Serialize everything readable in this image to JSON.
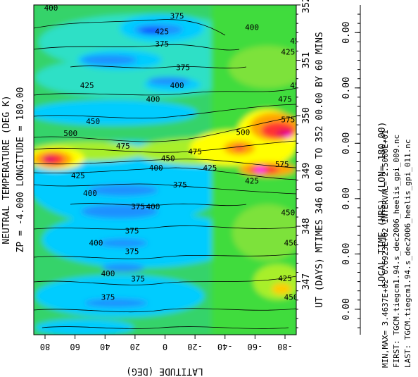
{
  "chart_data": {
    "type": "heatmap",
    "title": "NEUTRAL TEMPERATURE (DEG K)",
    "subtitle": "ZP =   -4.000 LONGITUDE =   180.00",
    "xlabel": "LATITUDE (DEG)",
    "x_ticks": [
      "80",
      "60",
      "40",
      "20",
      "0",
      "-20",
      "-40",
      "-60",
      "-80"
    ],
    "xlim": [
      87.5,
      -87.5
    ],
    "ylabel_days": "UT (DAYS) MTIMES 346 01.00 TO 352 00.00 BY   60 MINS",
    "y_ticks_days": [
      "347",
      "348",
      "349",
      "350",
      "351",
      "352"
    ],
    "ylabel_local_time": "LOCAL TIME (HRS) (LON= 180.00)",
    "y_ticks_local_time": [
      "0.00",
      "0.00",
      "0.00",
      "0.00",
      "0.00",
      "0.00"
    ],
    "ylim_days": [
      346.04,
      352.0
    ],
    "min_max_line": "MIN,MAX=  3.4637E+02  6.6923E+02 INTERVAL=  2.5000E+01",
    "first_line": "FIRST: TGCM.tiegcm1.94.s_dec2006_heelis_gpi_009.nc",
    "last_line": "LAST:  TGCM.tiegcm1.94.s_dec2006_heelis_gpi_011.nc",
    "colors": [
      "#0000ff",
      "#1e90ff",
      "#00d0ff",
      "#40e0c0",
      "#00c060",
      "#40ff40",
      "#c8ff00",
      "#ffff00",
      "#ffa500",
      "#ff3030",
      "#e0006a",
      "#ff00ff"
    ],
    "contour_labels": [
      {
        "text": "400",
        "lat": 76,
        "day": 351.95
      },
      {
        "text": "375",
        "lat": -8,
        "day": 351.8
      },
      {
        "text": "400",
        "lat": 28,
        "day": 352.05
      },
      {
        "text": "425",
        "lat": 2,
        "day": 351.52
      },
      {
        "text": "375",
        "lat": 2,
        "day": 351.3
      },
      {
        "text": "400",
        "lat": -58,
        "day": 351.6
      },
      {
        "text": "425",
        "lat": -82,
        "day": 351.15
      },
      {
        "text": "450",
        "lat": -88,
        "day": 351.35
      },
      {
        "text": "375",
        "lat": -12,
        "day": 350.87
      },
      {
        "text": "425",
        "lat": 52,
        "day": 350.55
      },
      {
        "text": "400",
        "lat": -8,
        "day": 350.55
      },
      {
        "text": "450",
        "lat": -88,
        "day": 350.55
      },
      {
        "text": "400",
        "lat": 8,
        "day": 350.3
      },
      {
        "text": "450",
        "lat": 48,
        "day": 349.9
      },
      {
        "text": "475",
        "lat": -80,
        "day": 350.3
      },
      {
        "text": "500",
        "lat": 63,
        "day": 349.68
      },
      {
        "text": "500",
        "lat": -52,
        "day": 349.7
      },
      {
        "text": "475",
        "lat": 28,
        "day": 349.45
      },
      {
        "text": "475",
        "lat": -20,
        "day": 349.35
      },
      {
        "text": "450",
        "lat": -2,
        "day": 349.23
      },
      {
        "text": "400",
        "lat": 6,
        "day": 349.06
      },
      {
        "text": "425",
        "lat": 58,
        "day": 348.92
      },
      {
        "text": "425",
        "lat": -30,
        "day": 349.06
      },
      {
        "text": "425",
        "lat": -58,
        "day": 348.82
      },
      {
        "text": "575",
        "lat": -82,
        "day": 349.93
      },
      {
        "text": "575",
        "lat": -78,
        "day": 349.12
      },
      {
        "text": "375",
        "lat": -10,
        "day": 348.75
      },
      {
        "text": "400",
        "lat": 50,
        "day": 348.6
      },
      {
        "text": "375",
        "lat": 18,
        "day": 348.36
      },
      {
        "text": "400",
        "lat": 8,
        "day": 348.36
      },
      {
        "text": "450",
        "lat": -82,
        "day": 348.25
      },
      {
        "text": "375",
        "lat": 22,
        "day": 347.92
      },
      {
        "text": "400",
        "lat": 46,
        "day": 347.7
      },
      {
        "text": "375",
        "lat": 22,
        "day": 347.55
      },
      {
        "text": "450",
        "lat": -84,
        "day": 347.7
      },
      {
        "text": "400",
        "lat": 38,
        "day": 347.15
      },
      {
        "text": "375",
        "lat": 18,
        "day": 347.05
      },
      {
        "text": "425",
        "lat": -80,
        "day": 347.06
      },
      {
        "text": "375",
        "lat": 38,
        "day": 346.72
      },
      {
        "text": "450",
        "lat": -84,
        "day": 346.72
      }
    ]
  }
}
